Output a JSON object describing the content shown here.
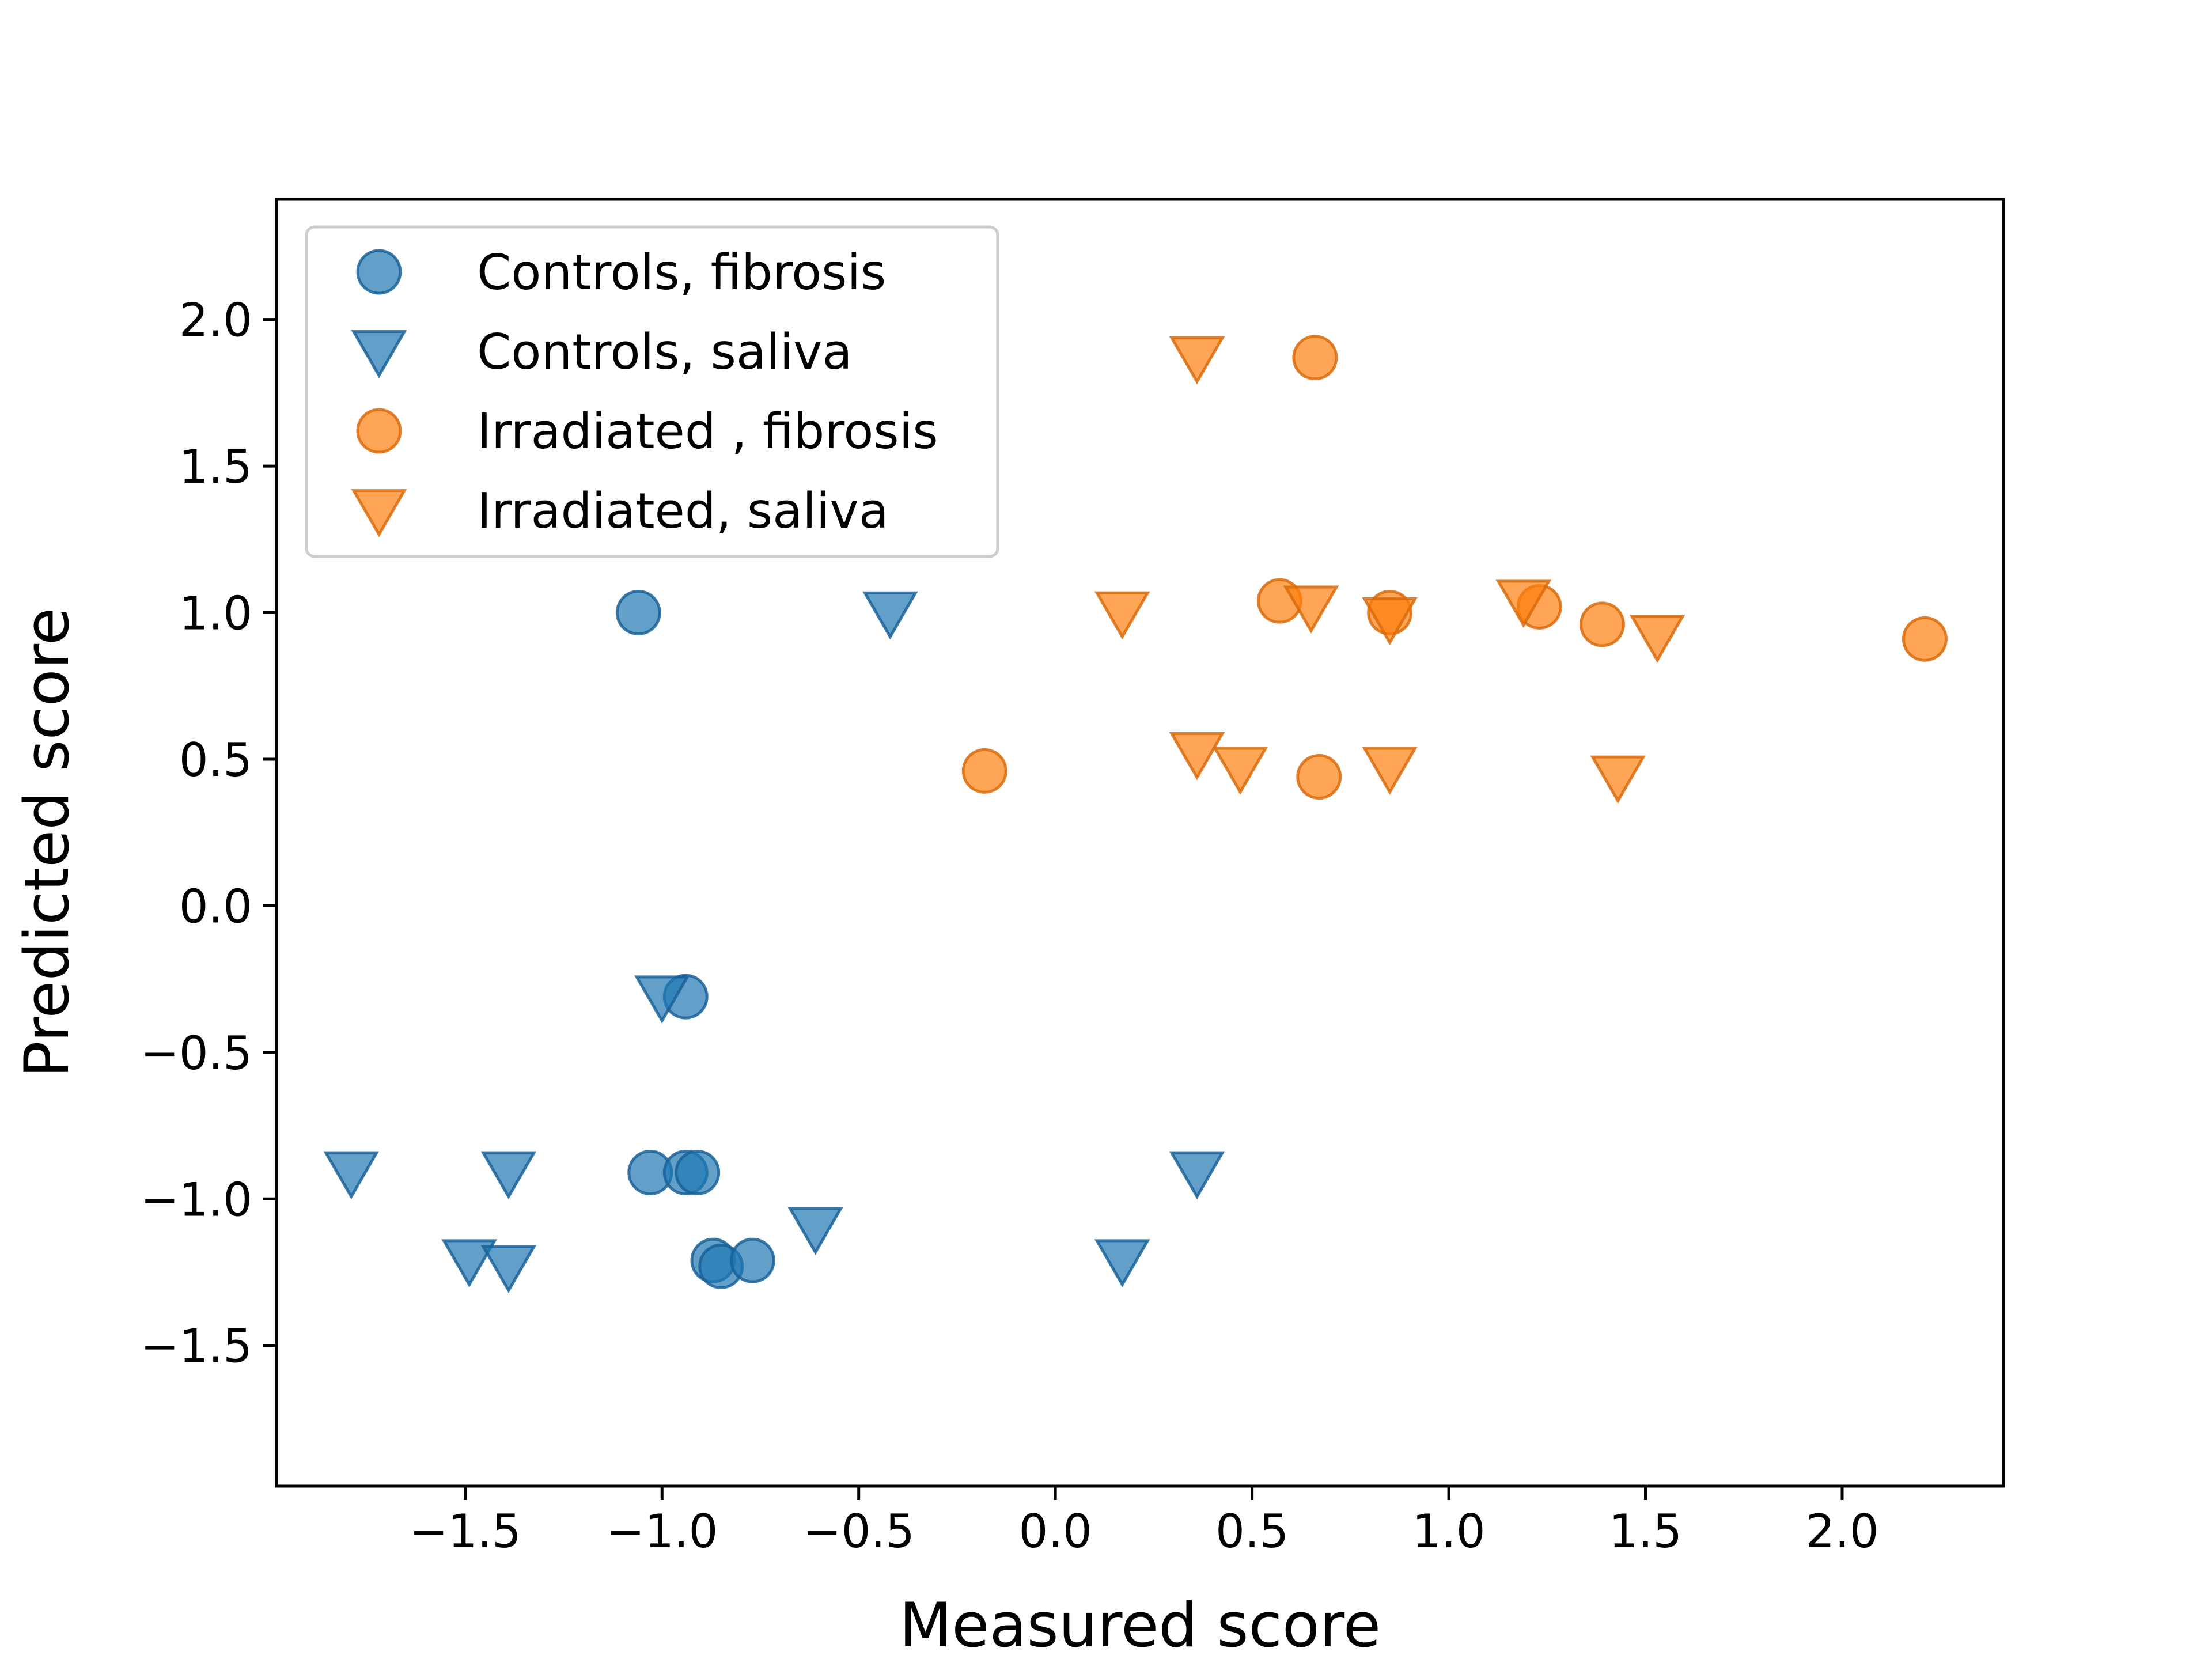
{
  "chart_data": {
    "type": "scatter",
    "title": "",
    "xlabel": "Measured score",
    "ylabel": "Predicted score",
    "xlim": [
      -1.98,
      2.41
    ],
    "ylim": [
      -1.98,
      2.41
    ],
    "xticks": [
      -1.5,
      -1.0,
      -0.5,
      0.0,
      0.5,
      1.0,
      1.5,
      2.0
    ],
    "yticks": [
      -1.5,
      -1.0,
      -0.5,
      0.0,
      0.5,
      1.0,
      1.5,
      2.0
    ],
    "xtick_labels": [
      "−1.5",
      "−1.0",
      "−0.5",
      "0.0",
      "0.5",
      "1.0",
      "1.5",
      "2.0"
    ],
    "ytick_labels": [
      "−1.5",
      "−1.0",
      "−0.5",
      "0.0",
      "0.5",
      "1.0",
      "1.5",
      "2.0"
    ],
    "grid": false,
    "legend_position": "top-left",
    "series": [
      {
        "name": "Controls, fibrosis",
        "marker": "circle",
        "color": "#1f77b4",
        "points": [
          [
            -1.06,
            1.0
          ],
          [
            -0.94,
            -0.31
          ],
          [
            -1.03,
            -0.91
          ],
          [
            -0.94,
            -0.91
          ],
          [
            -0.91,
            -0.91
          ],
          [
            -0.87,
            -1.21
          ],
          [
            -0.85,
            -1.23
          ],
          [
            -0.77,
            -1.21
          ]
        ]
      },
      {
        "name": "Controls, saliva",
        "marker": "triangle-down",
        "color": "#1f77b4",
        "points": [
          [
            -0.42,
            1.0
          ],
          [
            -1.0,
            -0.31
          ],
          [
            -1.79,
            -0.91
          ],
          [
            -1.39,
            -0.91
          ],
          [
            -1.49,
            -1.21
          ],
          [
            -1.39,
            -1.23
          ],
          [
            -0.61,
            -1.1
          ],
          [
            0.36,
            -0.91
          ],
          [
            0.17,
            -1.21
          ]
        ]
      },
      {
        "name": "Irradiated , fibrosis",
        "marker": "circle",
        "color": "#ff7f0e",
        "points": [
          [
            0.66,
            1.87
          ],
          [
            0.57,
            1.04
          ],
          [
            0.85,
            1.0
          ],
          [
            1.23,
            1.02
          ],
          [
            1.39,
            0.96
          ],
          [
            2.21,
            0.91
          ],
          [
            -0.18,
            0.46
          ],
          [
            0.67,
            0.44
          ]
        ]
      },
      {
        "name": "Irradiated, saliva",
        "marker": "triangle-down",
        "color": "#ff7f0e",
        "points": [
          [
            0.36,
            1.87
          ],
          [
            0.17,
            1.0
          ],
          [
            0.65,
            1.02
          ],
          [
            0.85,
            0.98
          ],
          [
            1.19,
            1.04
          ],
          [
            1.53,
            0.92
          ],
          [
            0.36,
            0.52
          ],
          [
            0.47,
            0.47
          ],
          [
            0.85,
            0.47
          ],
          [
            1.43,
            0.44
          ]
        ]
      }
    ]
  }
}
